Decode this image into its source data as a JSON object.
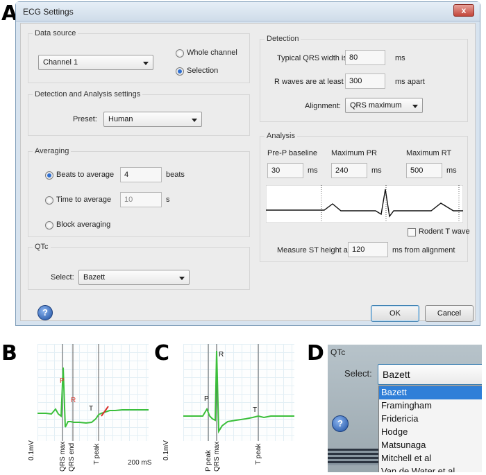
{
  "panels": {
    "a": "A",
    "b": "B",
    "c": "C",
    "d": "D"
  },
  "dialog": {
    "title": "ECG Settings",
    "close_glyph": "x",
    "data_source": {
      "group_label": "Data source",
      "channel_value": "Channel 1",
      "whole_channel_label": "Whole channel",
      "selection_label": "Selection",
      "selected_option": "Selection"
    },
    "detection_analysis": {
      "group_label": "Detection and Analysis settings",
      "preset_label": "Preset:",
      "preset_value": "Human"
    },
    "averaging": {
      "group_label": "Averaging",
      "beats_label": "Beats to average",
      "beats_value": "4",
      "beats_unit": "beats",
      "time_label": "Time to average",
      "time_value": "10",
      "time_unit": "s",
      "block_label": "Block averaging",
      "selected_option": "Beats to average"
    },
    "qtc": {
      "group_label": "QTc",
      "select_label": "Select:",
      "select_value": "Bazett"
    },
    "detection": {
      "group_label": "Detection",
      "qrs_width_label": "Typical QRS width is",
      "qrs_width_value": "80",
      "qrs_width_unit": "ms",
      "r_waves_label": "R waves are at least",
      "r_waves_value": "300",
      "r_waves_unit": "ms apart",
      "alignment_label": "Alignment:",
      "alignment_value": "QRS maximum"
    },
    "analysis": {
      "group_label": "Analysis",
      "pre_p_label": "Pre-P baseline",
      "pre_p_value": "30",
      "pre_p_unit": "ms",
      "max_pr_label": "Maximum PR",
      "max_pr_value": "240",
      "max_pr_unit": "ms",
      "max_rt_label": "Maximum RT",
      "max_rt_value": "500",
      "max_rt_unit": "ms",
      "rodent_label": "Rodent T wave",
      "rodent_checked": false,
      "st_label": "Measure ST height at",
      "st_value": "120",
      "st_unit": "ms from alignment"
    },
    "buttons": {
      "help": "?",
      "ok": "OK",
      "cancel": "Cancel"
    }
  },
  "panel_b": {
    "marks": {
      "p": "P",
      "r": "R",
      "t": "T"
    },
    "x_labels": {
      "qrs_max": "QRS max",
      "qrs_end": "QRS end",
      "t_peak": "T peak"
    },
    "scale_y": "0.1mV",
    "scale_x": "200 mS",
    "colors": {
      "trace": "#3bbf3b",
      "marker": "#d9302a"
    }
  },
  "panel_c": {
    "marks": {
      "p": "P",
      "r": "R",
      "t": "T"
    },
    "x_labels": {
      "p_peak": "P peak",
      "qrs_max": "QRS max",
      "t_peak": "T peak"
    },
    "scale_y": "0.1mV"
  },
  "panel_d": {
    "group_label": "QTc",
    "select_label": "Select:",
    "select_value": "Bazett",
    "options": [
      "Bazett",
      "Framingham",
      "Fridericia",
      "Hodge",
      "Matsunaga",
      "Mitchell et al",
      "Van de Water et al"
    ],
    "highlighted": "Bazett",
    "help": "?"
  }
}
